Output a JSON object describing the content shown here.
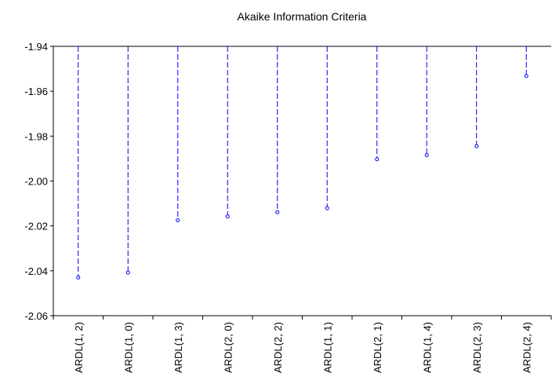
{
  "chart_data": {
    "type": "scatter",
    "title": "Akaike Information Criteria",
    "xlabel": "",
    "ylabel": "",
    "categories": [
      "ARDL(1, 2)",
      "ARDL(1, 0)",
      "ARDL(1, 3)",
      "ARDL(2, 0)",
      "ARDL(2, 2)",
      "ARDL(1, 1)",
      "ARDL(2, 1)",
      "ARDL(1, 4)",
      "ARDL(2, 3)",
      "ARDL(2, 4)"
    ],
    "values": [
      -2.043,
      -2.0408,
      -2.0175,
      -2.0158,
      -2.0139,
      -2.0121,
      -1.9903,
      -1.9885,
      -1.9845,
      -1.9532
    ],
    "ylim": [
      -2.06,
      -1.94
    ],
    "yticks": [
      -1.94,
      -1.96,
      -1.98,
      -2.0,
      -2.02,
      -2.04,
      -2.06
    ],
    "ytick_labels": [
      "-1.94",
      "-1.96",
      "-1.98",
      "-2.00",
      "-2.02",
      "-2.04",
      "-2.06"
    ],
    "style": "dashed drop lines from top axis to markers",
    "grid": false,
    "colors": {
      "series": "#0000ff",
      "axis": "#000000"
    }
  }
}
